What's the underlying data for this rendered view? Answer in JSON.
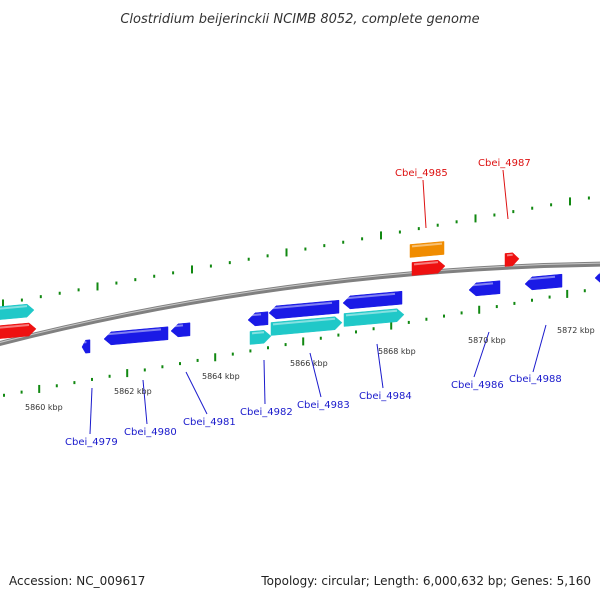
{
  "title": "Clostridium beijerinckii NCIMB 8052, complete genome",
  "footer": {
    "accession": "Accession: NC_009617",
    "summary": "Topology: circular; Length: 6,000,632 bp; Genes: 5,160"
  },
  "colors": {
    "backbone": "#808080",
    "tick": "#118811",
    "blue_gene": "#1a1ae6",
    "cyan_gene": "#20c8c8",
    "red_gene": "#ee1111",
    "orange_gene": "#f08c00",
    "label_blue": "#1a1acc",
    "label_red": "#dd1111"
  },
  "coordinate_labels": [
    "5860 kbp",
    "5862 kbp",
    "5864 kbp",
    "5866 kbp",
    "5868 kbp",
    "5870 kbp",
    "5872 kbp"
  ],
  "gene_labels": [
    {
      "id": "Cbei_4979",
      "color": "blue"
    },
    {
      "id": "Cbei_4980",
      "color": "blue"
    },
    {
      "id": "Cbei_4981",
      "color": "blue"
    },
    {
      "id": "Cbei_4982",
      "color": "blue"
    },
    {
      "id": "Cbei_4983",
      "color": "blue"
    },
    {
      "id": "Cbei_4984",
      "color": "blue"
    },
    {
      "id": "Cbei_4985",
      "color": "red"
    },
    {
      "id": "Cbei_4986",
      "color": "blue"
    },
    {
      "id": "Cbei_4987",
      "color": "red"
    },
    {
      "id": "Cbei_4988",
      "color": "blue"
    }
  ]
}
